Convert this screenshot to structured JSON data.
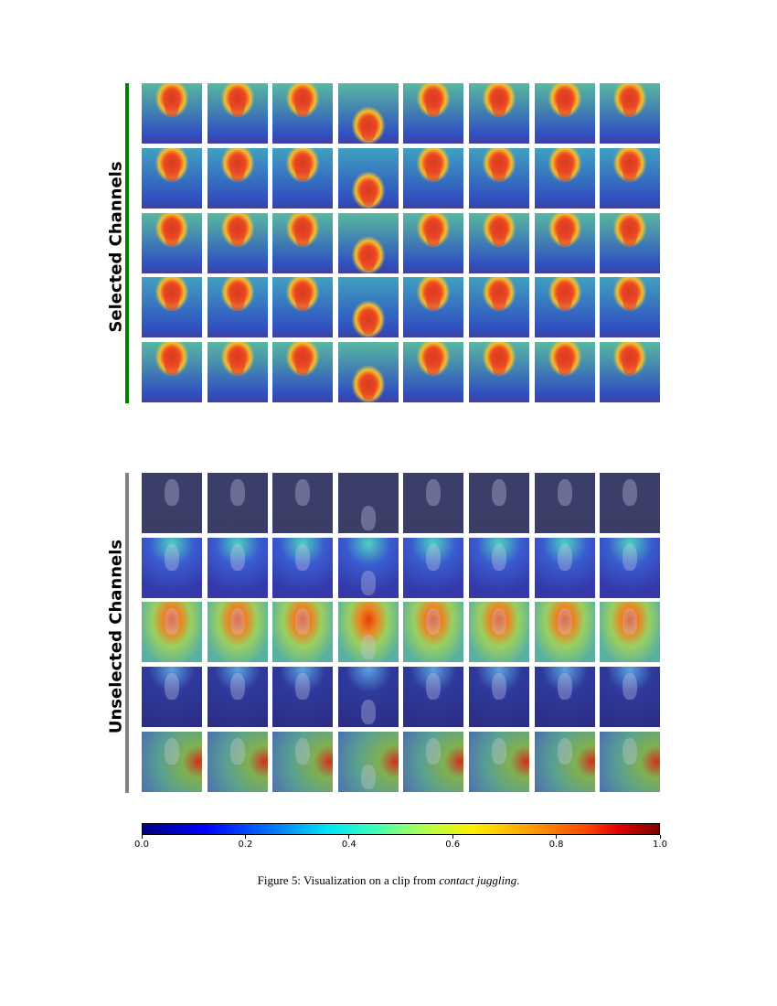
{
  "groups": [
    {
      "label": "Selected Channels",
      "bar_color": "#008000",
      "rows": 5,
      "cols": 8
    },
    {
      "label": "Unselected Channels",
      "bar_color": "#808080",
      "rows": 5,
      "cols": 8
    }
  ],
  "colorbar": {
    "colormap": "jet",
    "range": [
      0.0,
      1.0
    ],
    "ticks": [
      "0.0",
      "0.2",
      "0.4",
      "0.6",
      "0.8",
      "1.0"
    ]
  },
  "caption": {
    "prefix": "Figure 5: Visualization on a clip from ",
    "emphasis": "contact juggling",
    "suffix": "."
  }
}
